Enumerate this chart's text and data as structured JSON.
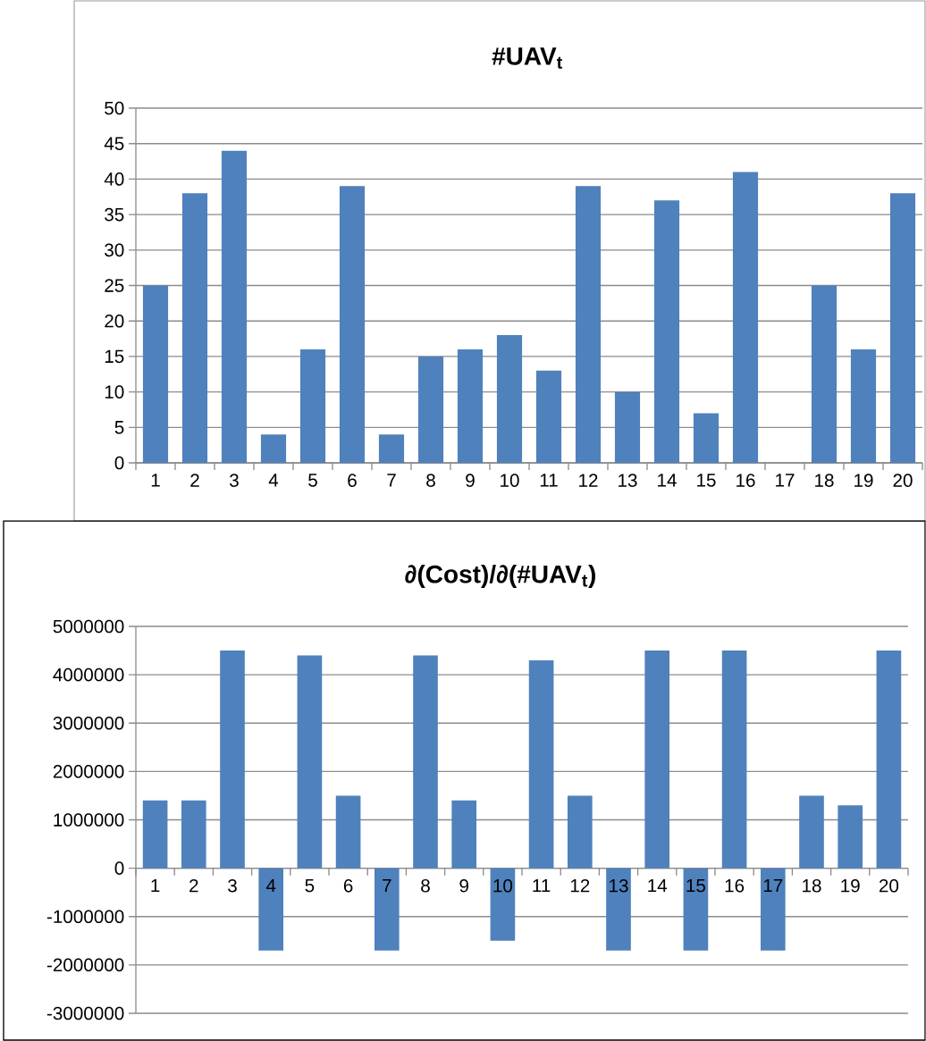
{
  "chart_data": [
    {
      "type": "bar",
      "title": "#UAV$_{t}$",
      "categories": [
        "1",
        "2",
        "3",
        "4",
        "5",
        "6",
        "7",
        "8",
        "9",
        "10",
        "11",
        "12",
        "13",
        "14",
        "15",
        "16",
        "17",
        "18",
        "19",
        "20"
      ],
      "values": [
        25,
        38,
        44,
        4,
        16,
        39,
        4,
        15,
        16,
        18,
        13,
        39,
        10,
        37,
        7,
        41,
        0,
        25,
        16,
        38
      ],
      "color": "#4f81bd",
      "ylim": [
        0,
        50
      ],
      "yticks": [
        0,
        5,
        10,
        15,
        20,
        25,
        30,
        35,
        40,
        45,
        50
      ],
      "grid": "y"
    },
    {
      "type": "bar",
      "title": "∂(Cost)/∂(#UAV$_{t}$)",
      "categories": [
        "1",
        "2",
        "3",
        "4",
        "5",
        "6",
        "7",
        "8",
        "9",
        "10",
        "11",
        "12",
        "13",
        "14",
        "15",
        "16",
        "17",
        "18",
        "19",
        "20"
      ],
      "values": [
        1400000,
        1400000,
        4500000,
        -1700000,
        4400000,
        1500000,
        -1700000,
        4400000,
        1400000,
        -1500000,
        4300000,
        1500000,
        -1700000,
        4500000,
        -1700000,
        4500000,
        -1700000,
        1500000,
        1300000,
        4500000
      ],
      "color": "#4f81bd",
      "ylim": [
        -3000000,
        5000000
      ],
      "yticks": [
        -3000000,
        -2000000,
        -1000000,
        0,
        1000000,
        2000000,
        3000000,
        4000000,
        5000000
      ],
      "grid": "y"
    }
  ]
}
